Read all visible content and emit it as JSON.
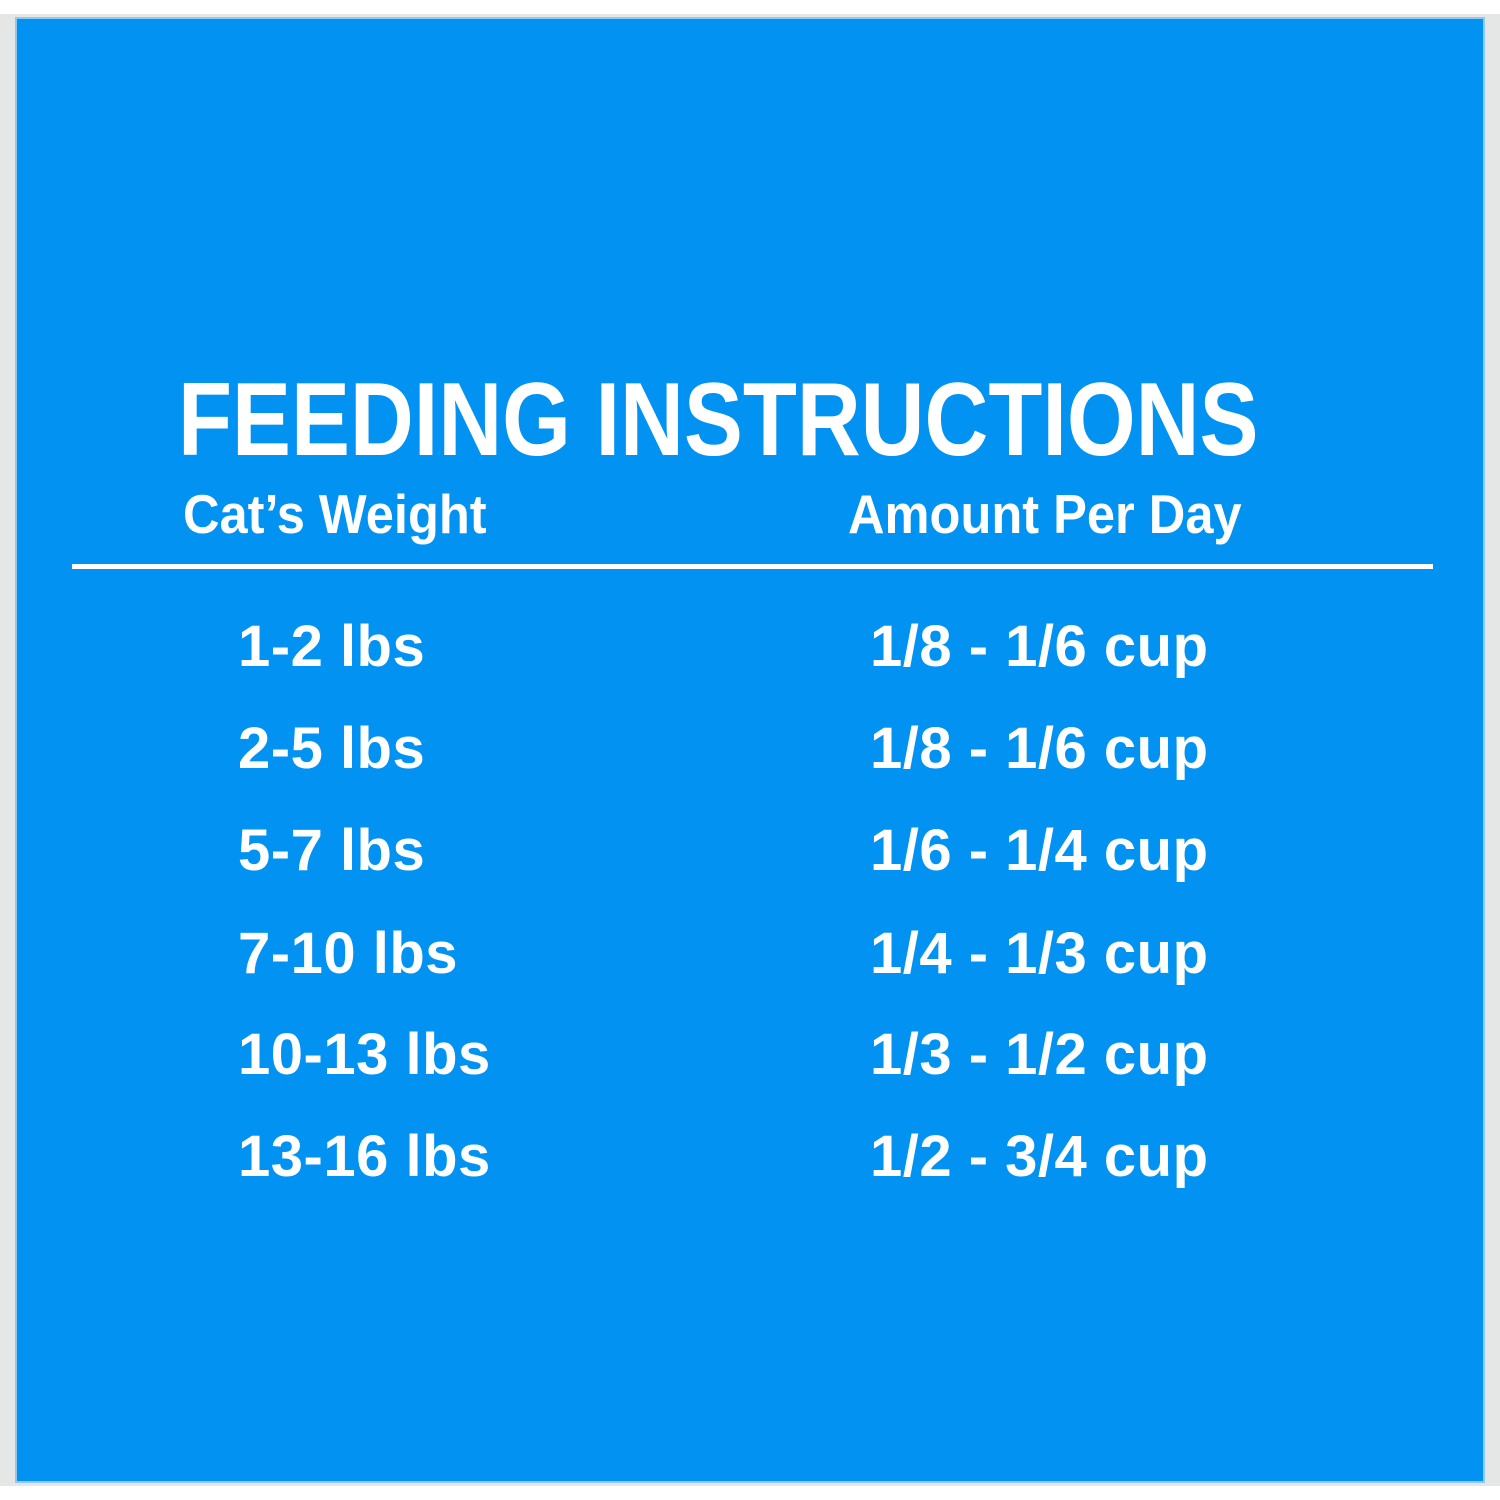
{
  "colors": {
    "panel_blue": "#0292f2",
    "frame_gray": "#e5e6e6",
    "page_white": "#ffffff",
    "text_white": "#ffffff"
  },
  "table": {
    "title": "FEEDING INSTRUCTIONS",
    "col_weight": "Cat’s Weight",
    "col_amount": "Amount Per Day",
    "rows": [
      {
        "weight": "1-2 lbs",
        "amount": "1/8 - 1/6 cup"
      },
      {
        "weight": "2-5 lbs",
        "amount": "1/8 - 1/6 cup"
      },
      {
        "weight": "5-7 lbs",
        "amount": "1/6 - 1/4 cup"
      },
      {
        "weight": "7-10 lbs",
        "amount": "1/4 - 1/3 cup"
      },
      {
        "weight": "10-13 lbs",
        "amount": "1/3 - 1/2 cup"
      },
      {
        "weight": "13-16 lbs",
        "amount": "1/2 - 3/4 cup"
      }
    ]
  }
}
